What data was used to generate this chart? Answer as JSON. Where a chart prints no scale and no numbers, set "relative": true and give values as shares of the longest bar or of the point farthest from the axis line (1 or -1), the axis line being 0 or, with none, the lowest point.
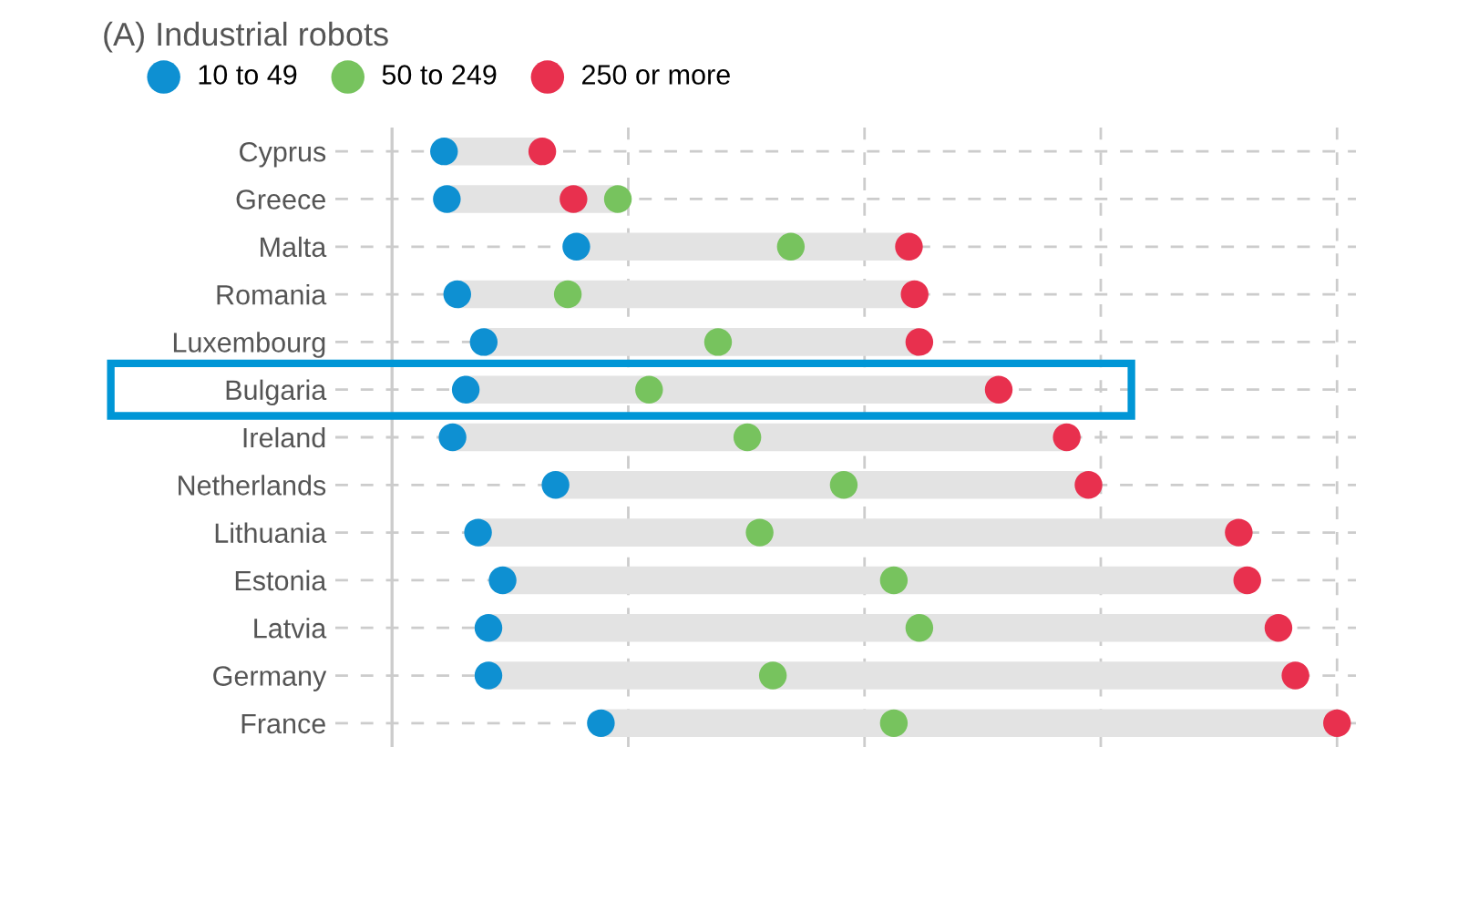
{
  "chart_data": {
    "type": "scatter",
    "title": "(A) Industrial robots",
    "orientation": "horizontal",
    "relative": true,
    "categories": [
      "Cyprus",
      "Greece",
      "Malta",
      "Romania",
      "Luxembourg",
      "Bulgaria",
      "Ireland",
      "Netherlands",
      "Lithuania",
      "Estonia",
      "Latvia",
      "Germany",
      "France"
    ],
    "series": [
      {
        "name": "10 to 49",
        "color": "#0e90d2",
        "values": [
          0.055,
          0.058,
          0.195,
          0.069,
          0.097,
          0.078,
          0.064,
          0.173,
          0.091,
          0.117,
          0.102,
          0.102,
          0.221
        ]
      },
      {
        "name": "50 to 249",
        "color": "#77c35e",
        "values": [
          null,
          0.239,
          0.422,
          0.186,
          0.345,
          0.272,
          0.376,
          0.478,
          0.389,
          0.531,
          0.558,
          0.403,
          0.531
        ]
      },
      {
        "name": "250 or more",
        "color": "#e8304e",
        "values": [
          0.159,
          0.192,
          0.547,
          0.553,
          0.558,
          0.642,
          0.714,
          0.737,
          0.896,
          0.905,
          0.938,
          0.956,
          1.0
        ]
      }
    ],
    "marker": "circle",
    "grid": true,
    "legend": "top left"
  }
}
